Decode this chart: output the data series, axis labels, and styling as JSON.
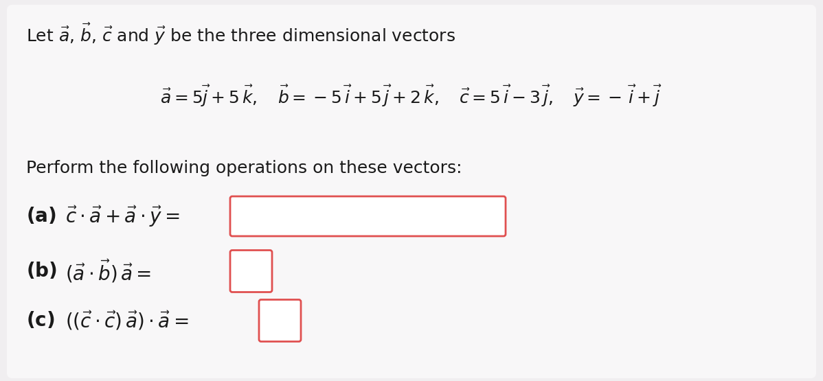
{
  "bg_color": "#f0eef0",
  "card_color": "#f8f7f8",
  "box_color": "#e05050",
  "text_color": "#1a1a1a",
  "font_size_title": 18,
  "font_size_vectors": 18,
  "font_size_perform": 18,
  "font_size_parts": 20,
  "title": "Let $\\vec{a}$, $\\vec{b}$, $\\vec{c}$ and $\\vec{y}$ be the three dimensional vectors",
  "perform": "Perform the following operations on these vectors:",
  "vec_line": "$\\vec{a} = 5\\vec{j}+ 5\\,\\vec{k},\\quad \\vec{b} = -5\\,\\vec{i}+ 5\\,\\vec{j}+ 2\\,\\vec{k},\\quad \\vec{c} = 5\\,\\vec{i}- 3\\,\\vec{j},\\quad \\vec{y} = -\\,\\vec{i}+ \\vec{j}$",
  "a_label": "(a)",
  "a_expr": "$\\vec{c}\\cdot\\vec{a}+\\vec{a}\\cdot\\vec{y} =$",
  "b_label": "(b)",
  "b_expr": "$(\\vec{a}\\cdot\\vec{b})\\,\\vec{a} =$",
  "c_label": "(c)",
  "c_expr": "$((\\vec{c}\\cdot\\vec{c})\\,\\vec{a})\\cdot\\vec{a} =$"
}
